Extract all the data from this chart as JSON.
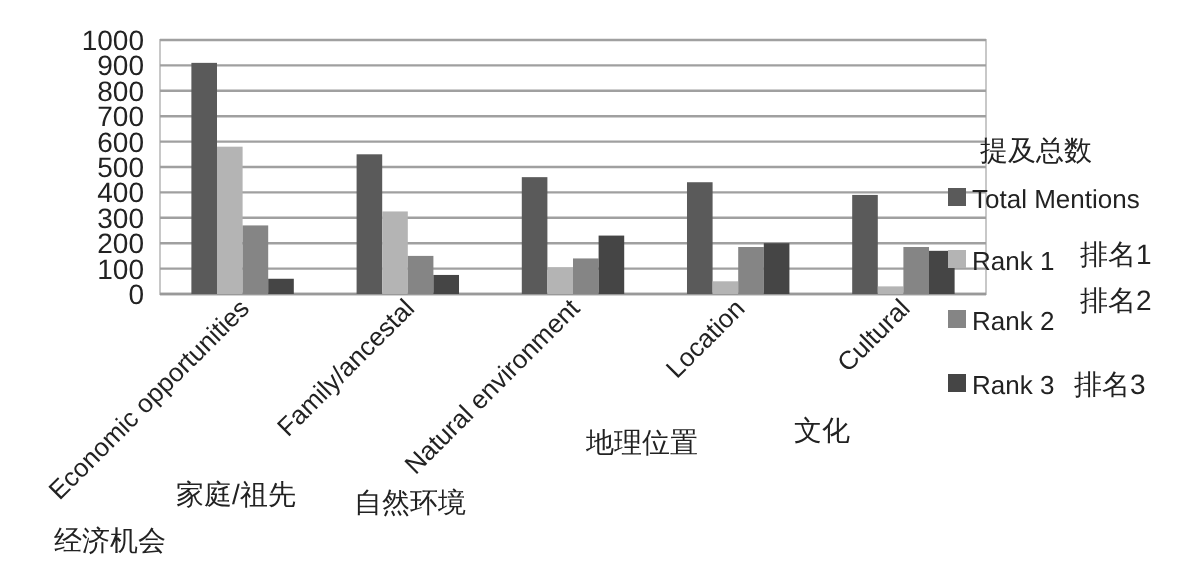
{
  "chart_data": {
    "type": "bar",
    "categories": [
      "Economic opportunities",
      "Family/ancestal",
      "Natural environment",
      "Location",
      "Cultural"
    ],
    "series": [
      {
        "name": "Total Mentions",
        "color": "#5a5a5a",
        "values": [
          910,
          550,
          460,
          440,
          390
        ]
      },
      {
        "name": "Rank 1",
        "color": "#b4b4b4",
        "values": [
          580,
          325,
          105,
          50,
          30
        ]
      },
      {
        "name": "Rank 2",
        "color": "#858585",
        "values": [
          270,
          150,
          140,
          185,
          185
        ]
      },
      {
        "name": "Rank 3",
        "color": "#454545",
        "values": [
          60,
          75,
          230,
          200,
          170
        ]
      }
    ],
    "ylim": [
      0,
      1000
    ],
    "yticks": [
      0,
      100,
      200,
      300,
      400,
      500,
      600,
      700,
      800,
      900,
      1000
    ],
    "grid": "y",
    "legend": "right",
    "legend_title": "提及总数",
    "annotations": [
      "经济机会",
      "家庭/祖先",
      "自然环境",
      "地理位置",
      "文化",
      "排名1",
      "排名2",
      "排名3"
    ]
  }
}
